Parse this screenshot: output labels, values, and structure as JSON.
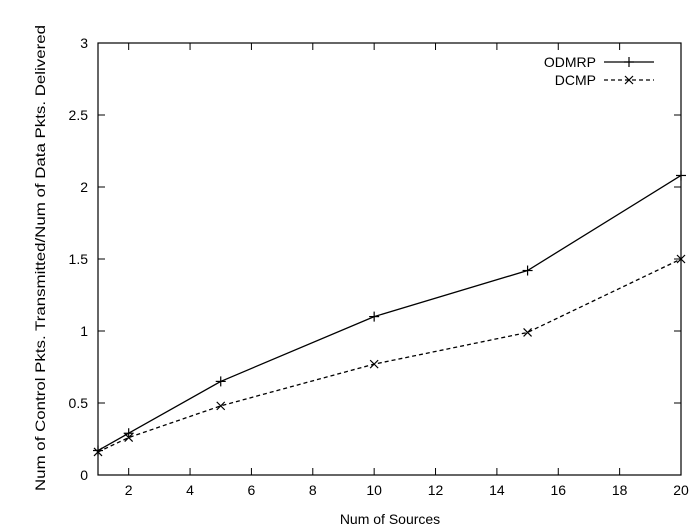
{
  "chart_data": {
    "type": "line",
    "title": "",
    "xlabel": "Num of Sources",
    "ylabel": "Num of Control Pkts. Transmitted/Num of Data Pkts. Delivered",
    "xlim": [
      1,
      20
    ],
    "ylim": [
      0,
      3
    ],
    "x_ticks": [
      2,
      4,
      6,
      8,
      10,
      12,
      14,
      16,
      18,
      20
    ],
    "y_ticks": [
      0,
      0.5,
      1,
      1.5,
      2,
      2.5,
      3
    ],
    "grid": false,
    "legend_position": "top-right",
    "series": [
      {
        "name": "ODMRP",
        "marker": "plus",
        "line_style": "solid",
        "color": "#000000",
        "x": [
          1,
          2,
          5,
          10,
          15,
          20
        ],
        "y": [
          0.17,
          0.29,
          0.65,
          1.1,
          1.42,
          2.08
        ]
      },
      {
        "name": "DCMP",
        "marker": "cross",
        "line_style": "dashed",
        "color": "#000000",
        "x": [
          1,
          2,
          5,
          10,
          15,
          20
        ],
        "y": [
          0.16,
          0.26,
          0.48,
          0.77,
          0.99,
          1.5
        ]
      }
    ]
  }
}
